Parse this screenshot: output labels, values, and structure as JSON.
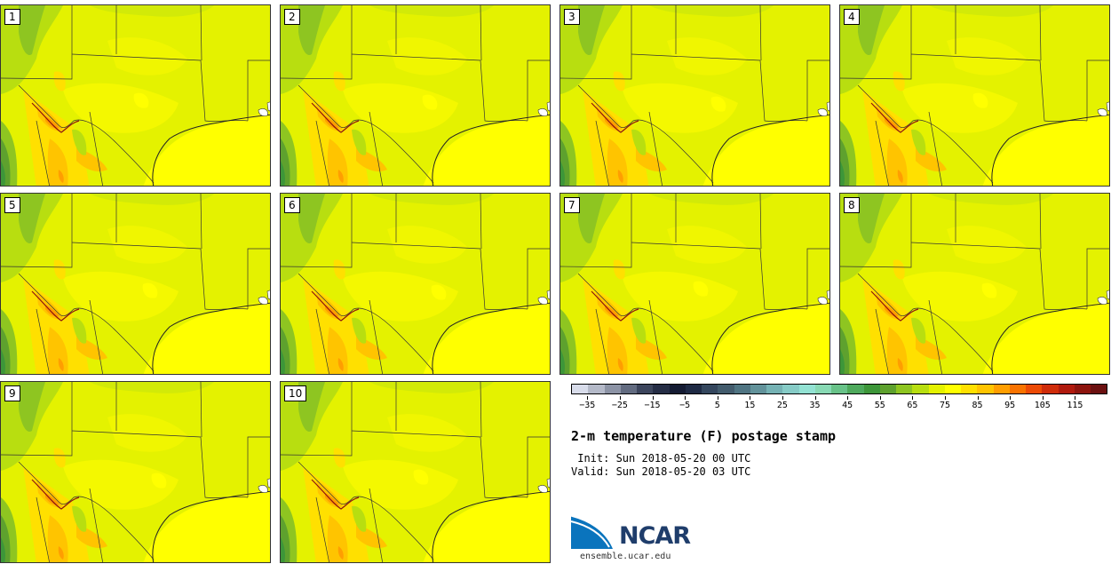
{
  "panels": [
    {
      "label": "1"
    },
    {
      "label": "2"
    },
    {
      "label": "3"
    },
    {
      "label": "4"
    },
    {
      "label": "5"
    },
    {
      "label": "6"
    },
    {
      "label": "7"
    },
    {
      "label": "8"
    },
    {
      "label": "9"
    },
    {
      "label": "10"
    }
  ],
  "colorbar": {
    "colors": [
      "#d8dcea",
      "#b4b9c8",
      "#8c93a5",
      "#626b80",
      "#3c455c",
      "#252d45",
      "#141b33",
      "#1e2a44",
      "#34465d",
      "#425b6c",
      "#4f7482",
      "#62929a",
      "#75b2b4",
      "#86cbc6",
      "#93e2d3",
      "#88d9b4",
      "#68c288",
      "#4ea95c",
      "#3d9639",
      "#5ea12e",
      "#8ec521",
      "#b8de10",
      "#e4f200",
      "#ffff00",
      "#ffe000",
      "#ffc400",
      "#ff9e00",
      "#f97300",
      "#ec4a06",
      "#cf2c0a",
      "#b01a0e",
      "#8d140e",
      "#6b1010"
    ],
    "tick_labels": [
      "−35",
      "−25",
      "−15",
      "−5",
      "5",
      "15",
      "25",
      "35",
      "45",
      "55",
      "65",
      "75",
      "85",
      "95",
      "105",
      "115"
    ]
  },
  "title": "2-m temperature (F) postage stamp",
  "init": " Init: Sun 2018-05-20 00 UTC",
  "valid": "Valid: Sun 2018-05-20 03 UTC",
  "logo_text": "NCAR",
  "website": "ensemble.ucar.edu"
}
